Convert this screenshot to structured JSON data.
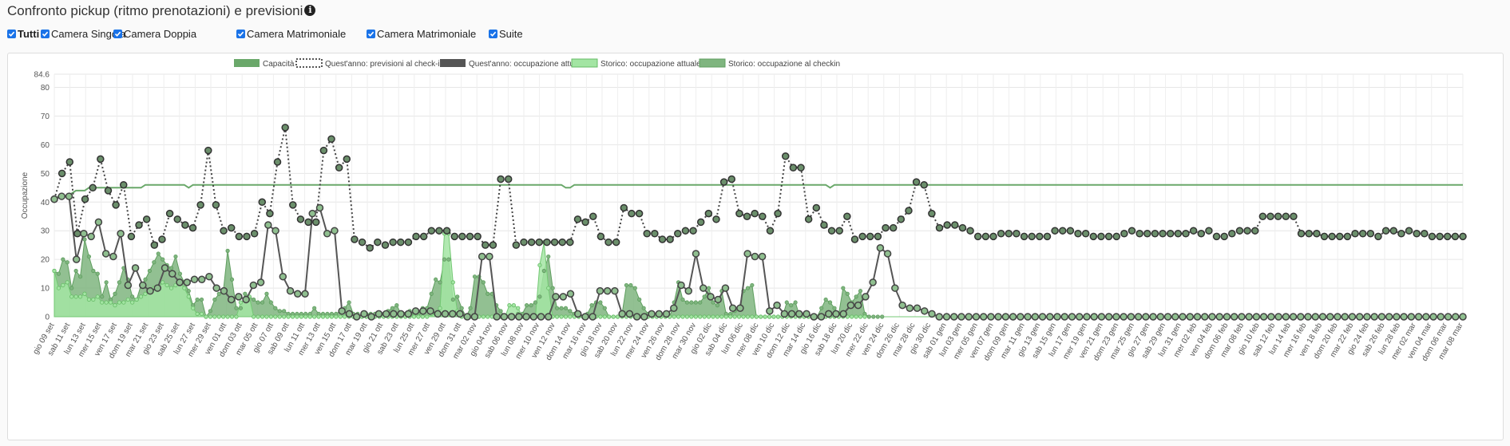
{
  "title": "Confronto pickup (ritmo prenotazioni) e previsioni",
  "info_icon": "info-icon",
  "filters": [
    {
      "label": "Tutti",
      "checked": true,
      "bold": true
    },
    {
      "label": "Camera Singola",
      "checked": true,
      "bold": false
    },
    {
      "label": "Camera Doppia",
      "checked": true,
      "bold": false
    },
    {
      "label": "Camera Matrimoniale",
      "checked": true,
      "bold": false
    },
    {
      "label": "Camera Matrimoniale",
      "checked": true,
      "bold": false
    },
    {
      "label": "Suite",
      "checked": true,
      "bold": false
    }
  ],
  "colors": {
    "capacity": "#6aa86a",
    "current_line": "#555555",
    "hist_current_fill": "#a3e5a3",
    "hist_checkin_fill": "#7fb57f",
    "marker_fill": "#6b8f6b",
    "marker_stroke": "#333333",
    "checkbox": "#1a73e8"
  },
  "chart_data": {
    "type": "area",
    "ylabel": "Occupazione",
    "ylim": [
      0,
      84.6
    ],
    "y_ticks": [
      "0",
      "10",
      "20",
      "30",
      "40",
      "50",
      "60",
      "70",
      "80",
      "84.6"
    ],
    "grid": true,
    "legend_position": "top",
    "x_labels": [
      "gio 09 set",
      "sab 11 set",
      "lun 13 set",
      "mer 15 set",
      "ven 17 set",
      "dom 19 set",
      "mar 21 set",
      "gio 23 set",
      "sab 25 set",
      "lun 27 set",
      "mer 29 set",
      "ven 01 ott",
      "dom 03 ott",
      "mar 05 ott",
      "gio 07 ott",
      "sab 09 ott",
      "lun 11 ott",
      "mer 13 ott",
      "ven 15 ott",
      "dom 17 ott",
      "mar 19 ott",
      "gio 21 ott",
      "sab 23 ott",
      "lun 25 ott",
      "mer 27 ott",
      "ven 29 ott",
      "dom 31 ott",
      "mar 02 nov",
      "gio 04 nov",
      "sab 06 nov",
      "lun 08 nov",
      "mer 10 nov",
      "ven 12 nov",
      "dom 14 nov",
      "mar 16 nov",
      "gio 18 nov",
      "sab 20 nov",
      "lun 22 nov",
      "mer 24 nov",
      "ven 26 nov",
      "dom 28 nov",
      "mar 30 nov",
      "gio 02 dic",
      "sab 04 dic",
      "lun 06 dic",
      "mer 08 dic",
      "ven 10 dic",
      "dom 12 dic",
      "mar 14 dic",
      "gio 16 dic",
      "sab 18 dic",
      "lun 20 dic",
      "mer 22 dic",
      "ven 24 dic",
      "dom 26 dic",
      "mar 28 dic",
      "gio 30 dic",
      "sab 01 gen",
      "lun 03 gen",
      "mer 05 gen",
      "ven 07 gen",
      "dom 09 gen",
      "mar 11 gen",
      "gio 13 gen",
      "sab 15 gen",
      "lun 17 gen",
      "mer 19 gen",
      "ven 21 gen",
      "dom 23 gen",
      "mar 25 gen",
      "gio 27 gen",
      "sab 29 gen",
      "lun 31 gen",
      "mer 02 feb",
      "ven 04 feb",
      "dom 06 feb",
      "mar 08 feb",
      "gio 10 feb",
      "sab 12 feb",
      "lun 14 feb",
      "mer 16 feb",
      "ven 18 feb",
      "dom 20 feb",
      "mar 22 feb",
      "gio 24 feb",
      "sab 26 feb",
      "lun 28 feb",
      "mer 02 mar",
      "ven 04 mar",
      "dom 06 mar",
      "mar 08 mar"
    ],
    "series": [
      {
        "name": "Capacità",
        "kind": "line",
        "values": [
          41,
          42,
          42,
          42,
          43,
          44,
          44,
          44,
          45,
          45,
          45,
          45,
          45,
          45,
          45,
          45,
          45,
          45,
          45,
          45,
          45,
          46,
          46,
          46,
          46,
          46,
          46,
          46,
          46,
          46,
          46,
          45,
          46,
          46,
          46,
          46,
          46,
          46,
          46,
          46,
          46,
          46,
          46,
          46,
          46,
          46,
          46,
          46,
          46,
          46,
          46,
          46,
          46,
          46,
          46,
          46,
          46,
          46,
          46,
          46,
          46,
          46,
          46,
          46,
          46,
          46,
          46,
          46,
          46,
          46,
          46,
          46,
          46,
          46,
          46,
          46,
          46,
          46,
          46,
          46,
          46,
          46,
          46,
          46,
          46,
          46,
          46,
          46,
          46,
          46,
          46,
          46,
          46,
          46,
          46,
          46,
          46,
          46,
          46,
          46,
          46,
          46,
          46,
          46,
          46,
          46,
          46,
          46,
          46,
          46,
          46,
          46,
          46,
          46,
          46,
          46,
          46,
          46,
          45,
          45,
          46,
          46,
          46,
          46,
          46,
          46,
          46,
          46,
          46,
          46,
          46,
          46,
          46,
          46,
          46,
          46,
          46,
          46,
          46,
          46,
          46,
          46,
          46,
          46,
          46,
          46,
          46,
          46,
          46,
          46,
          46,
          46,
          46,
          46,
          46,
          46,
          46,
          46,
          46,
          46,
          46,
          46,
          46,
          46,
          46,
          46,
          46,
          46,
          46,
          46,
          46,
          46,
          46,
          46,
          46,
          46,
          46,
          46,
          46,
          45,
          46,
          46,
          46,
          46,
          46,
          46,
          46,
          46,
          46,
          46,
          46,
          46,
          46,
          46,
          46,
          46,
          46,
          46,
          46,
          46,
          46,
          46,
          46,
          46,
          46,
          46,
          46,
          46,
          46,
          46,
          46,
          46,
          46,
          46,
          46,
          46,
          46,
          46,
          46,
          46,
          46,
          46,
          46,
          46,
          46,
          46,
          46,
          46,
          46,
          46,
          46,
          46,
          46,
          46,
          46,
          46,
          46,
          46,
          46,
          46,
          46,
          46,
          46,
          46,
          46,
          46,
          46,
          46,
          46,
          46,
          46,
          46,
          46,
          46,
          46,
          46,
          46,
          46,
          46,
          46,
          46,
          46,
          46,
          46,
          46,
          46,
          46,
          46,
          46,
          46,
          46,
          46,
          46,
          46,
          46,
          46,
          46,
          46,
          46,
          46,
          46,
          46,
          46,
          46,
          46,
          46,
          46,
          46,
          46,
          46,
          46,
          46,
          46,
          46,
          46,
          46,
          46,
          46,
          46,
          46,
          46,
          46,
          46,
          46,
          46,
          46,
          46,
          46,
          46,
          46,
          46,
          46,
          46,
          46,
          46,
          46,
          46,
          46,
          46,
          46,
          46,
          46,
          46,
          46,
          46,
          46
        ]
      },
      {
        "name": "Quest'anno: previsioni al check-in",
        "kind": "dotted",
        "values": [
          41,
          50,
          54,
          29,
          41,
          45,
          55,
          44,
          39,
          46,
          28,
          32,
          34,
          25,
          27,
          36,
          34,
          32,
          31,
          39,
          58,
          39,
          30,
          31,
          28,
          28,
          29,
          40,
          36,
          54,
          66,
          39,
          34,
          33,
          33,
          58,
          62,
          52,
          55,
          27,
          26,
          24,
          26,
          25,
          26,
          26,
          26,
          28,
          28,
          30,
          30,
          30,
          28,
          28,
          28,
          28,
          25,
          25,
          48,
          48,
          25,
          26,
          26,
          26,
          26,
          26,
          26,
          26,
          34,
          33,
          35,
          28,
          26,
          26,
          38,
          36,
          36,
          29,
          29,
          27,
          27,
          29,
          30,
          30,
          33,
          36,
          34,
          47,
          48,
          36,
          35,
          36,
          35,
          30,
          36,
          56,
          52,
          52,
          34,
          38,
          32,
          30,
          30,
          35,
          27,
          28,
          28,
          28,
          31,
          31,
          34,
          37,
          47,
          46,
          36,
          31,
          32,
          32,
          31,
          30,
          28,
          28,
          28,
          29,
          29,
          29,
          28,
          28,
          28,
          28,
          30,
          30,
          30,
          29,
          29,
          28,
          28,
          28,
          28,
          29,
          30,
          29,
          29,
          29,
          29,
          29,
          29,
          29,
          30,
          29,
          30,
          28,
          28,
          29,
          30,
          30,
          30,
          35,
          35,
          35,
          35,
          35,
          29,
          29,
          29,
          28,
          28,
          28,
          28,
          29,
          29,
          29,
          28,
          30,
          30,
          29,
          30,
          29,
          29,
          28,
          28,
          28,
          28,
          28
        ]
      },
      {
        "name": "Quest'anno: occupazione attuale",
        "kind": "line",
        "values": [
          41,
          42,
          42,
          20,
          29,
          28,
          33,
          22,
          21,
          29,
          11,
          17,
          11,
          9,
          10,
          17,
          15,
          12,
          12,
          13,
          13,
          14,
          10,
          9,
          6,
          7,
          6,
          11,
          12,
          32,
          30,
          14,
          9,
          8,
          8,
          36,
          38,
          29,
          30,
          2,
          1,
          0,
          1,
          0,
          1,
          1,
          1,
          1,
          1,
          2,
          2,
          2,
          1,
          1,
          1,
          1,
          0,
          0,
          21,
          21,
          0,
          0,
          0,
          0,
          0,
          0,
          0,
          0,
          7,
          7,
          8,
          1,
          0,
          0,
          9,
          9,
          9,
          1,
          1,
          0,
          0,
          1,
          1,
          1,
          3,
          11,
          9,
          22,
          10,
          7,
          6,
          10,
          3,
          3,
          22,
          21,
          21,
          2,
          4,
          1,
          1,
          1,
          1,
          0,
          0,
          1,
          1,
          1,
          4,
          4,
          7,
          12,
          24,
          22,
          10,
          4,
          3,
          3,
          2,
          1,
          0,
          0,
          0,
          0,
          0,
          0,
          0,
          0,
          0,
          0,
          0,
          0,
          0,
          0,
          0,
          0,
          0,
          0,
          0,
          0,
          0,
          0,
          0,
          0,
          0,
          0,
          0,
          0,
          0,
          0,
          0,
          0,
          0,
          0,
          0,
          0,
          0,
          0,
          0,
          0,
          0,
          0,
          0,
          0,
          0,
          0,
          0,
          0,
          0,
          0,
          0,
          0,
          0,
          0,
          0,
          0,
          0,
          0,
          0,
          0,
          0,
          0,
          0,
          0,
          0,
          0,
          0,
          0,
          0,
          0,
          0,
          0
        ]
      },
      {
        "name": "Storico: occupazione attuale",
        "kind": "area",
        "values": [
          16,
          10,
          11,
          12,
          7,
          7,
          7,
          8,
          6,
          6,
          7,
          5,
          5,
          5,
          4,
          5,
          5,
          6,
          5,
          6,
          7,
          8,
          9,
          10,
          10,
          12,
          11,
          10,
          11,
          12,
          10,
          7,
          3,
          1,
          1,
          0,
          0,
          0,
          0,
          0,
          0,
          0,
          0,
          5,
          6,
          7,
          0,
          0,
          0,
          0,
          0,
          0,
          0,
          0,
          0,
          0,
          0,
          0,
          0,
          0,
          0,
          0,
          0,
          0,
          0,
          0,
          0,
          0,
          0,
          0,
          0,
          0,
          0,
          0,
          0,
          0,
          0,
          0,
          0,
          0,
          0,
          0,
          0,
          0,
          0,
          0,
          0,
          1,
          1,
          3,
          29,
          29,
          12,
          2,
          0,
          0,
          0,
          0,
          0,
          0,
          0,
          0,
          0,
          0,
          0,
          4,
          4,
          3,
          0,
          0,
          0,
          0,
          18,
          26,
          10,
          0,
          0,
          0,
          0,
          0,
          0,
          0,
          0,
          0,
          0,
          0,
          0,
          0,
          0,
          0,
          0,
          0,
          0,
          0,
          0,
          0,
          0,
          0,
          0,
          0,
          0,
          0,
          0,
          0,
          0,
          0,
          0,
          0,
          0,
          0,
          0,
          0,
          0,
          0,
          0,
          0,
          0,
          0,
          0,
          0,
          0,
          0,
          0,
          0,
          0,
          0,
          0,
          0,
          0,
          0,
          0,
          0,
          0,
          0,
          0,
          0,
          0,
          0,
          0,
          0,
          0,
          0,
          0,
          0,
          0,
          0,
          0,
          0
        ]
      },
      {
        "name": "Storico: occupazione al checkin",
        "kind": "area",
        "values": [
          16,
          15,
          20,
          19,
          10,
          16,
          14,
          27,
          21,
          16,
          15,
          7,
          12,
          6,
          8,
          12,
          17,
          13,
          7,
          6,
          11,
          13,
          16,
          19,
          22,
          20,
          18,
          17,
          21,
          15,
          12,
          9,
          4,
          6,
          6,
          0,
          2,
          6,
          8,
          9,
          23,
          13,
          3,
          3,
          8,
          7,
          6,
          5,
          5,
          8,
          5,
          3,
          2,
          2,
          1,
          1,
          1,
          1,
          1,
          1,
          3,
          1,
          1,
          1,
          1,
          1,
          2,
          3,
          5,
          1,
          1,
          0,
          1,
          1,
          1,
          1,
          1,
          2,
          3,
          4,
          1,
          1,
          2,
          1,
          1,
          3,
          3,
          8,
          13,
          12,
          20,
          20,
          6,
          7,
          3,
          0,
          3,
          14,
          14,
          12,
          8,
          8,
          4,
          2,
          0,
          0,
          0,
          1,
          1,
          4,
          4,
          5,
          7,
          16,
          21,
          10,
          3,
          3,
          3,
          2,
          1,
          0,
          0,
          1,
          4,
          5,
          5,
          3,
          0,
          0,
          0,
          1,
          11,
          11,
          10,
          6,
          3,
          1,
          0,
          0,
          0,
          0,
          0,
          5,
          12,
          6,
          5,
          5,
          5,
          5,
          7,
          10,
          5,
          4,
          9,
          1,
          1,
          2,
          3,
          9,
          10,
          11,
          0,
          0,
          0,
          0,
          0,
          0,
          0,
          5,
          4,
          5,
          0,
          0,
          0,
          0,
          0,
          3,
          6,
          5,
          3,
          1,
          10,
          8,
          5,
          7,
          9,
          1,
          0,
          0,
          0,
          0
        ]
      }
    ]
  }
}
